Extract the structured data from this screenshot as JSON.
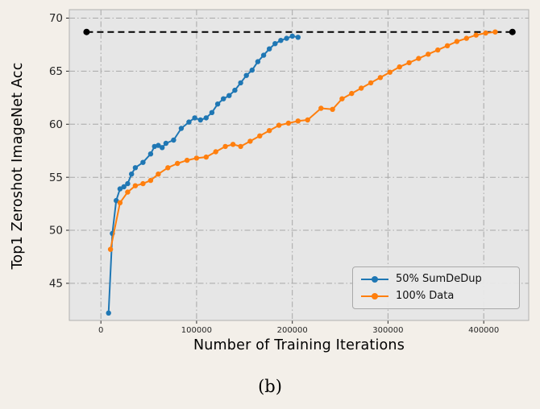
{
  "figure": {
    "background": "#f3efe9",
    "plot_background": "#e6e6e6",
    "grid_color": "#a8a8a8",
    "border_color": "#b0b0b0",
    "tick_color": "#262626"
  },
  "chart_data": {
    "type": "line",
    "title": "",
    "caption": "(b)",
    "xlabel": "Number of Training Iterations",
    "ylabel": "Top1 Zeroshot ImageNet Acc",
    "xlim": [
      -33000,
      447000
    ],
    "ylim": [
      41.5,
      70.8
    ],
    "xticks": {
      "values": [
        0,
        100000,
        200000,
        300000,
        400000
      ],
      "labels": [
        "0",
        "100000",
        "200000",
        "300000",
        "400000"
      ]
    },
    "yticks": {
      "values": [
        45,
        50,
        55,
        60,
        65,
        70
      ],
      "labels": [
        "45",
        "50",
        "55",
        "60",
        "65",
        "70"
      ]
    },
    "grid": "dash-dot",
    "legend_position": "lower right",
    "reference_line": {
      "y": 68.7,
      "x_start": -15000,
      "x_end": 430000,
      "style": "dashed",
      "color": "#000000",
      "endpoint_markers": true
    },
    "series": [
      {
        "name": "50% SumDeDup",
        "color": "#1f77b4",
        "marker": "circle",
        "points": [
          [
            8000,
            42.2
          ],
          [
            12000,
            49.7
          ],
          [
            16000,
            52.8
          ],
          [
            20000,
            53.9
          ],
          [
            24000,
            54.1
          ],
          [
            28000,
            54.4
          ],
          [
            32000,
            55.3
          ],
          [
            36000,
            55.9
          ],
          [
            44000,
            56.4
          ],
          [
            52000,
            57.2
          ],
          [
            56000,
            57.9
          ],
          [
            60000,
            58.0
          ],
          [
            64000,
            57.8
          ],
          [
            68000,
            58.2
          ],
          [
            76000,
            58.5
          ],
          [
            84000,
            59.6
          ],
          [
            92000,
            60.2
          ],
          [
            98000,
            60.6
          ],
          [
            104000,
            60.4
          ],
          [
            110000,
            60.6
          ],
          [
            116000,
            61.1
          ],
          [
            122000,
            61.9
          ],
          [
            128000,
            62.4
          ],
          [
            134000,
            62.7
          ],
          [
            140000,
            63.2
          ],
          [
            146000,
            63.9
          ],
          [
            152000,
            64.6
          ],
          [
            158000,
            65.1
          ],
          [
            164000,
            65.9
          ],
          [
            170000,
            66.5
          ],
          [
            176000,
            67.1
          ],
          [
            182000,
            67.6
          ],
          [
            188000,
            67.9
          ],
          [
            194000,
            68.1
          ],
          [
            200000,
            68.3
          ],
          [
            206000,
            68.2
          ]
        ]
      },
      {
        "name": "100% Data",
        "color": "#ff7f0e",
        "marker": "circle",
        "points": [
          [
            10000,
            48.2
          ],
          [
            20000,
            52.6
          ],
          [
            28000,
            53.6
          ],
          [
            36000,
            54.2
          ],
          [
            44000,
            54.4
          ],
          [
            52000,
            54.7
          ],
          [
            60000,
            55.3
          ],
          [
            70000,
            55.9
          ],
          [
            80000,
            56.3
          ],
          [
            90000,
            56.6
          ],
          [
            100000,
            56.8
          ],
          [
            110000,
            56.9
          ],
          [
            120000,
            57.4
          ],
          [
            130000,
            57.9
          ],
          [
            138000,
            58.1
          ],
          [
            146000,
            57.9
          ],
          [
            156000,
            58.4
          ],
          [
            166000,
            58.9
          ],
          [
            176000,
            59.4
          ],
          [
            186000,
            59.9
          ],
          [
            196000,
            60.1
          ],
          [
            206000,
            60.3
          ],
          [
            216000,
            60.4
          ],
          [
            230000,
            61.5
          ],
          [
            242000,
            61.4
          ],
          [
            252000,
            62.4
          ],
          [
            262000,
            62.9
          ],
          [
            272000,
            63.4
          ],
          [
            282000,
            63.9
          ],
          [
            292000,
            64.4
          ],
          [
            302000,
            64.9
          ],
          [
            312000,
            65.4
          ],
          [
            322000,
            65.8
          ],
          [
            332000,
            66.2
          ],
          [
            342000,
            66.6
          ],
          [
            352000,
            67.0
          ],
          [
            362000,
            67.4
          ],
          [
            372000,
            67.8
          ],
          [
            382000,
            68.1
          ],
          [
            392000,
            68.4
          ],
          [
            402000,
            68.6
          ],
          [
            412000,
            68.7
          ]
        ]
      }
    ]
  }
}
